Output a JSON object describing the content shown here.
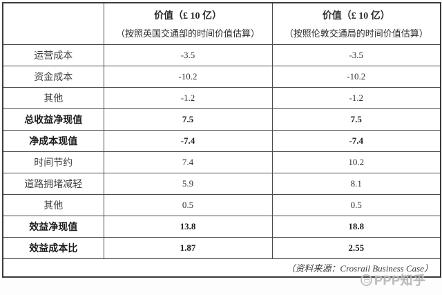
{
  "table": {
    "header": {
      "corner": "",
      "dft_col": {
        "line1": "价值（£ 10 亿）",
        "line2": "（按照英国交通部的时间价值估算）"
      },
      "tfl_col": {
        "line1": "价值（£ 10 亿）",
        "line2": "（按照伦敦交通局的时间价值估算）"
      }
    },
    "rows": [
      {
        "label": "运营成本",
        "dft": "-3.5",
        "tfl": "-3.5"
      },
      {
        "label": "资金成本",
        "dft": "-10.2",
        "tfl": "-10.2"
      },
      {
        "label": "其他",
        "dft": "-1.2",
        "tfl": "-1.2"
      },
      {
        "label": "总收益净现值",
        "dft": "7.5",
        "tfl": "7.5"
      },
      {
        "label": "净成本现值",
        "dft": "-7.4",
        "tfl": "-7.4"
      },
      {
        "label": "时间节约",
        "dft": "7.4",
        "tfl": "10.2"
      },
      {
        "label": "道路拥堵减轻",
        "dft": "5.9",
        "tfl": "8.1"
      },
      {
        "label": "其他",
        "dft": "0.5",
        "tfl": "0.5"
      },
      {
        "label": "效益净现值",
        "dft": "13.8",
        "tfl": "18.8"
      },
      {
        "label": "效益成本比",
        "dft": "1.87",
        "tfl": "2.55"
      }
    ],
    "source_note": "（资料来源：Crosrail Business Case）"
  },
  "watermark": {
    "text": "PPP知乎"
  }
}
